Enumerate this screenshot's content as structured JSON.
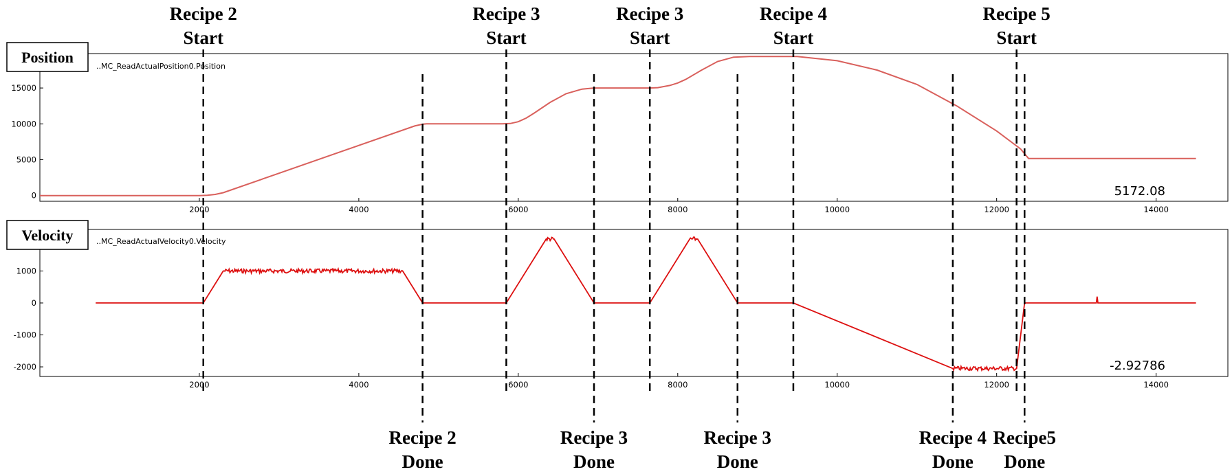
{
  "chart_data": [
    {
      "type": "line",
      "panel_label": "Position",
      "signal_name": "..MC_ReadActualPosition0.Position",
      "current_value": "5172.08",
      "xlim": [
        0,
        14900
      ],
      "ylim": [
        -800,
        19800
      ],
      "x_ticks": [
        2000,
        4000,
        6000,
        8000,
        10000,
        12000,
        14000
      ],
      "y_ticks": [
        0,
        5000,
        10000,
        15000
      ],
      "color": "#d9605c",
      "x": [
        0,
        2000,
        2050,
        2100,
        2200,
        2300,
        4700,
        4800,
        4850,
        5800,
        5900,
        6000,
        6100,
        6200,
        6400,
        6600,
        6800,
        6950,
        7100,
        7650,
        7750,
        7900,
        8000,
        8100,
        8300,
        8500,
        8700,
        8900,
        9500,
        10000,
        10500,
        11000,
        11500,
        12000,
        12300,
        12400,
        14500
      ],
      "y": [
        0,
        0,
        10,
        40,
        160,
        400,
        9700,
        9950,
        10000,
        10000,
        10050,
        10300,
        10800,
        11500,
        13000,
        14200,
        14850,
        15000,
        15000,
        15000,
        15050,
        15350,
        15700,
        16200,
        17500,
        18700,
        19300,
        19400,
        19400,
        18800,
        17500,
        15500,
        12500,
        9000,
        6500,
        5172,
        5172
      ]
    },
    {
      "type": "line",
      "panel_label": "Velocity",
      "signal_name": "..MC_ReadActualVelocity0.Velocity",
      "current_value": "-2.92786",
      "xlim": [
        0,
        14900
      ],
      "ylim": [
        -2300,
        2300
      ],
      "x_ticks": [
        2000,
        4000,
        6000,
        8000,
        10000,
        12000,
        14000
      ],
      "y_ticks": [
        -2000,
        -1000,
        0,
        1000
      ],
      "color": "#dd1111",
      "x": [
        700,
        2050,
        2300,
        4550,
        4800,
        5850,
        6350,
        6450,
        6950,
        7650,
        8150,
        8250,
        8750,
        9450,
        11450,
        12250,
        12350,
        13250,
        13260,
        13270,
        14500
      ],
      "y": [
        0,
        0,
        1000,
        1000,
        0,
        0,
        2000,
        2000,
        0,
        0,
        2000,
        2000,
        0,
        0,
        -2050,
        -2050,
        0,
        0,
        200,
        0,
        0
      ]
    }
  ],
  "annotations": {
    "start": [
      {
        "title": "Recipe 2",
        "sub": "Start",
        "x": 2050
      },
      {
        "title": "Recipe 3",
        "sub": "Start",
        "x": 5850
      },
      {
        "title": "Recipe 3",
        "sub": "Start",
        "x": 7650
      },
      {
        "title": "Recipe 4",
        "sub": "Start",
        "x": 9450
      },
      {
        "title": "Recipe 5",
        "sub": "Start",
        "x": 12250
      }
    ],
    "done": [
      {
        "title": "Recipe 2",
        "sub": "Done",
        "x": 4800
      },
      {
        "title": "Recipe 3",
        "sub": "Done",
        "x": 6950
      },
      {
        "title": "Recipe 3",
        "sub": "Done",
        "x": 8750
      },
      {
        "title": "Recipe 4",
        "sub": "Done",
        "x": 11450
      },
      {
        "title": "Recipe5",
        "sub": "Done",
        "x": 12350
      }
    ]
  }
}
